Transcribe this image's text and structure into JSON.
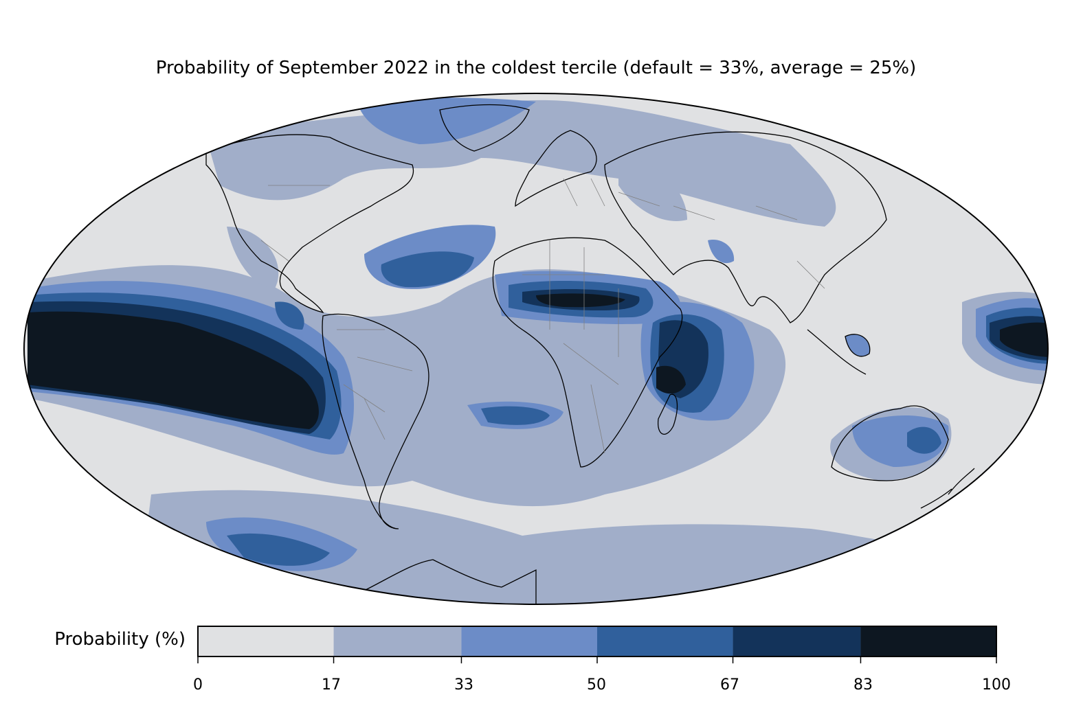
{
  "title": "Probability of September 2022 in the coldest tercile (default = 33%, average = 25%)",
  "colorbar": {
    "label": "Probability (%)",
    "ticks": [
      "0",
      "17",
      "33",
      "50",
      "67",
      "83",
      "100"
    ],
    "levels": [
      {
        "from": 0,
        "to": 17,
        "color": "#e0e1e3"
      },
      {
        "from": 17,
        "to": 33,
        "color": "#a1aec9"
      },
      {
        "from": 33,
        "to": 50,
        "color": "#6c8cc7"
      },
      {
        "from": 50,
        "to": 67,
        "color": "#30609c"
      },
      {
        "from": 67,
        "to": 83,
        "color": "#13335a"
      },
      {
        "from": 83,
        "to": 100,
        "color": "#0d1721"
      }
    ]
  },
  "map": {
    "projection": "Mollweide",
    "background_color": "#e0e1e3",
    "coastline_color": "#000000",
    "border_color": "#808080"
  }
}
